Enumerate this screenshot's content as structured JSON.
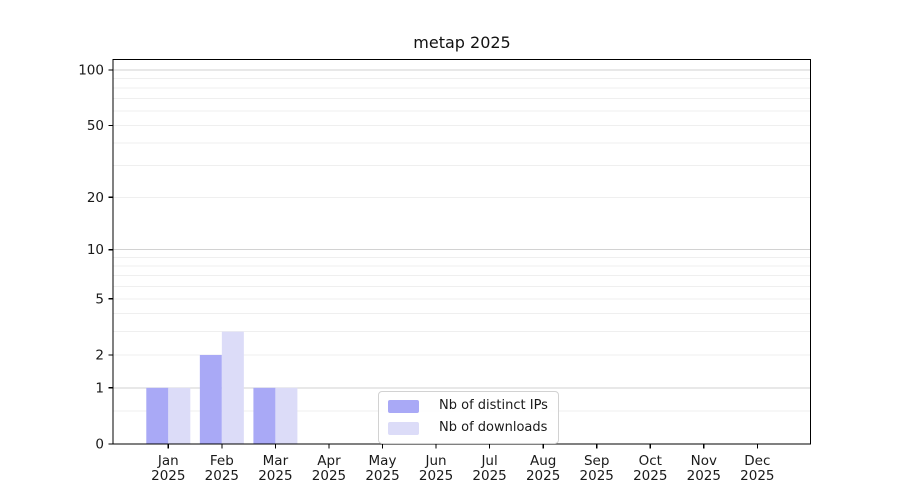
{
  "chart_data": {
    "type": "bar",
    "title": "metap 2025",
    "x_ticks": [
      {
        "month": "Jan",
        "year": "2025"
      },
      {
        "month": "Feb",
        "year": "2025"
      },
      {
        "month": "Mar",
        "year": "2025"
      },
      {
        "month": "Apr",
        "year": "2025"
      },
      {
        "month": "May",
        "year": "2025"
      },
      {
        "month": "Jun",
        "year": "2025"
      },
      {
        "month": "Jul",
        "year": "2025"
      },
      {
        "month": "Aug",
        "year": "2025"
      },
      {
        "month": "Sep",
        "year": "2025"
      },
      {
        "month": "Oct",
        "year": "2025"
      },
      {
        "month": "Nov",
        "year": "2025"
      },
      {
        "month": "Dec",
        "year": "2025"
      }
    ],
    "y_ticks": [
      0,
      1,
      2,
      5,
      10,
      20,
      50,
      100
    ],
    "y_scale": "log1p",
    "ylim": [
      0,
      115
    ],
    "series": [
      {
        "name": "Nb of distinct IPs",
        "color": "#a9a9f6",
        "values": [
          1,
          2,
          1,
          0,
          0,
          0,
          0,
          0,
          0,
          0,
          0,
          0
        ]
      },
      {
        "name": "Nb of downloads",
        "color": "#dcdcf8",
        "values": [
          1,
          3,
          1,
          0,
          0,
          0,
          0,
          0,
          0,
          0,
          0,
          0
        ]
      }
    ],
    "gridlines": {
      "major": [
        1,
        10,
        100
      ],
      "minor": [
        0.5,
        2,
        3,
        4,
        5,
        6,
        7,
        8,
        9,
        20,
        30,
        40,
        50,
        60,
        70,
        80,
        90
      ],
      "major_color": "#d2d2d2",
      "minor_color": "#efefef"
    },
    "legend": {
      "position": "lower center"
    },
    "axis_color": "#000000",
    "text_color": "#1a1a1a",
    "grid_on": true
  }
}
